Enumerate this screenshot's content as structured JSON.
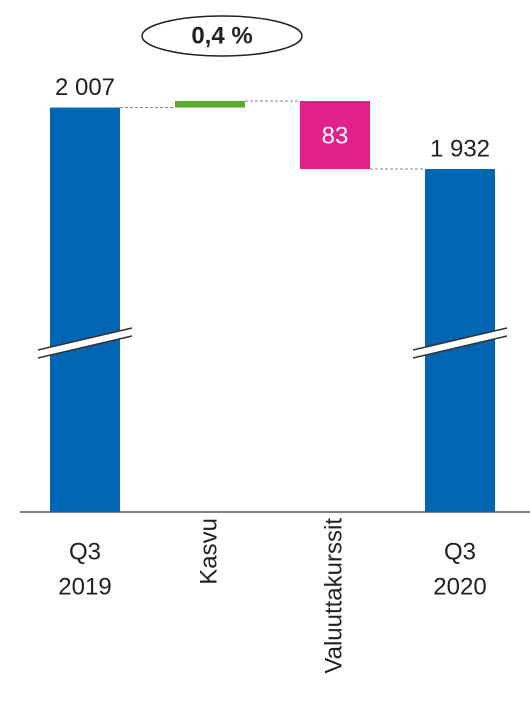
{
  "chart_data": {
    "type": "waterfall",
    "annotation": "0,4 %",
    "categories": [
      [
        "Q3",
        "2019"
      ],
      [
        "Kasvu"
      ],
      [
        "Valuuttakurssit"
      ],
      [
        "Q3",
        "2020"
      ]
    ],
    "values": [
      2007,
      8,
      -83,
      1932
    ],
    "value_labels": [
      "2 007",
      null,
      "83",
      "1 932"
    ],
    "kinds": [
      "total",
      "delta",
      "delta",
      "total"
    ],
    "colors": [
      "#0066b3",
      "#5aac2c",
      "#e2208c",
      "#0066b3"
    ]
  }
}
